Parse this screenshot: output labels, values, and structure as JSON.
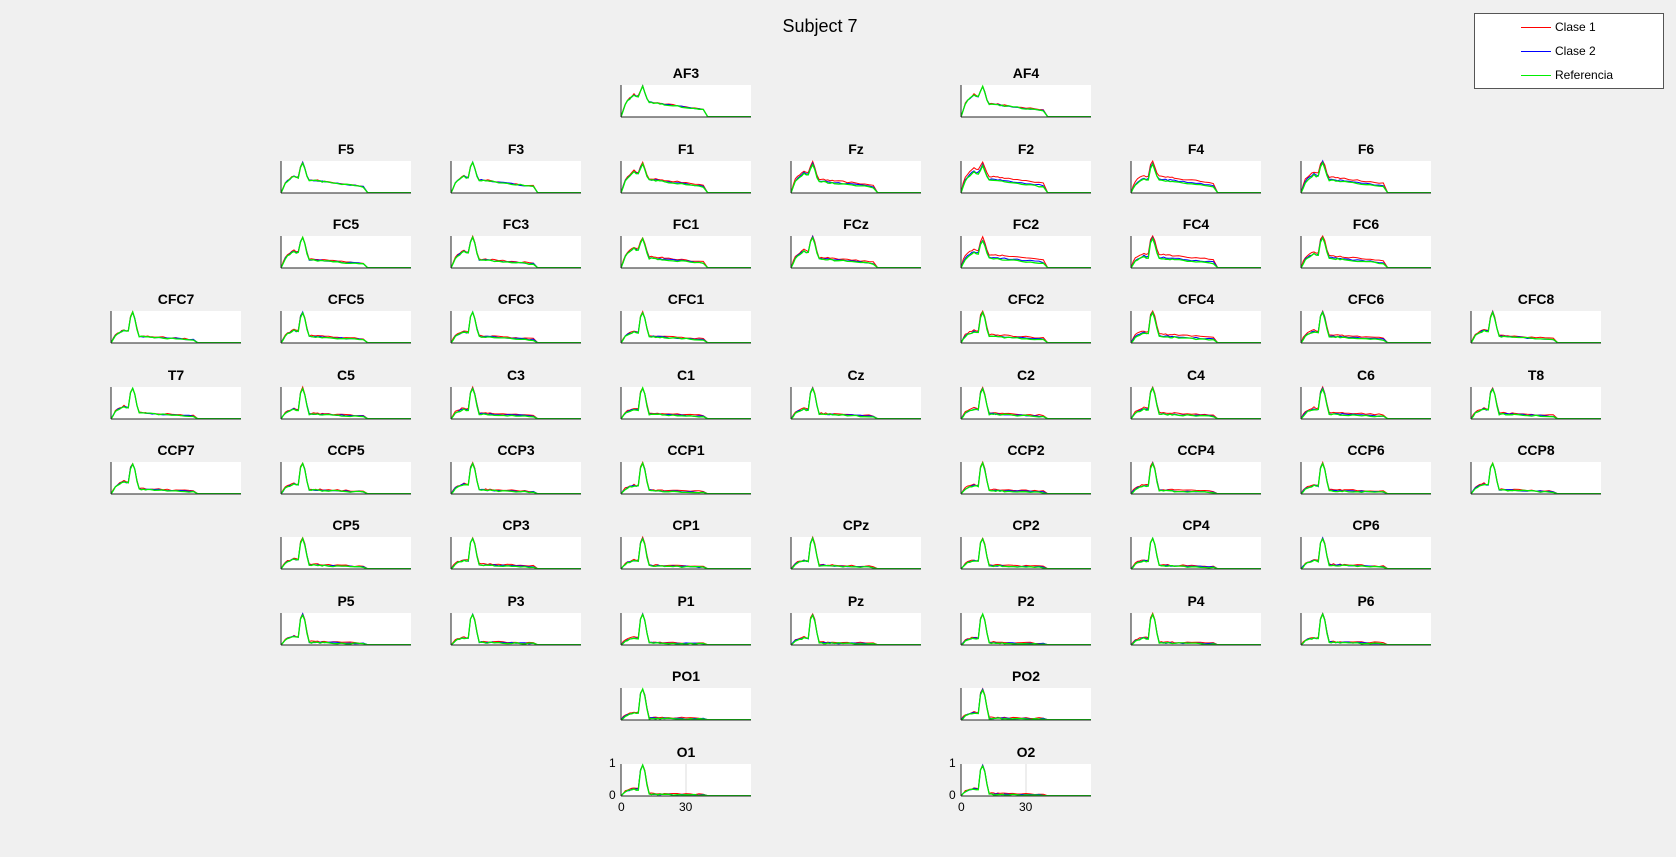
{
  "figure": {
    "title": "Subject 7",
    "colors": {
      "background": "#f0f0f0",
      "axes": "#ffffff"
    }
  },
  "legend": [
    {
      "label": "Clase 1",
      "color": "#ff0000"
    },
    {
      "label": "Clase 2",
      "color": "#0000ff"
    },
    {
      "label": "Referencia",
      "color": "#00ee00"
    }
  ],
  "chart_data": {
    "type": "line",
    "title": "Subject 7",
    "xlabel": "",
    "ylabel": "",
    "xlim": [
      0,
      60
    ],
    "ylim": [
      0,
      1
    ],
    "xticks": [
      0,
      30
    ],
    "yticks": [
      0,
      1
    ],
    "grid": false,
    "legend_position": "top-right",
    "shared_x": [
      0,
      1,
      2,
      3,
      4,
      5,
      6,
      7,
      8,
      9,
      10,
      11,
      12,
      13,
      14,
      15,
      16,
      17,
      18,
      19,
      20,
      22,
      24,
      26,
      28,
      30,
      32,
      34,
      36,
      38,
      40,
      42,
      44,
      46,
      48,
      50,
      52,
      55,
      58,
      60
    ],
    "series_names": [
      "Clase 1",
      "Clase 2",
      "Referencia"
    ],
    "channels": [
      {
        "name": "AF3",
        "row": 0,
        "col": 3,
        "peak": 0.95,
        "alpha": 0.8,
        "tail": 0.45,
        "cut": 40,
        "diff": 0.02,
        "ticks": false
      },
      {
        "name": "AF4",
        "row": 0,
        "col": 5,
        "peak": 0.95,
        "alpha": 0.8,
        "tail": 0.4,
        "cut": 40,
        "diff": 0.02,
        "ticks": false
      },
      {
        "name": "F5",
        "row": 1,
        "col": 1,
        "peak": 0.95,
        "alpha": 0.6,
        "tail": 0.4,
        "cut": 40,
        "diff": 0.02,
        "ticks": false
      },
      {
        "name": "F3",
        "row": 1,
        "col": 2,
        "peak": 0.95,
        "alpha": 0.6,
        "tail": 0.4,
        "cut": 40,
        "diff": 0.02,
        "ticks": false
      },
      {
        "name": "F1",
        "row": 1,
        "col": 3,
        "peak": 0.9,
        "alpha": 0.75,
        "tail": 0.4,
        "cut": 40,
        "diff": 0.05,
        "ticks": false
      },
      {
        "name": "Fz",
        "row": 1,
        "col": 4,
        "peak": 0.9,
        "alpha": 0.7,
        "tail": 0.35,
        "cut": 40,
        "diff": 0.08,
        "ticks": false
      },
      {
        "name": "F2",
        "row": 1,
        "col": 5,
        "peak": 0.85,
        "alpha": 0.75,
        "tail": 0.4,
        "cut": 40,
        "diff": 0.12,
        "ticks": false
      },
      {
        "name": "F4",
        "row": 1,
        "col": 6,
        "peak": 0.9,
        "alpha": 0.5,
        "tail": 0.4,
        "cut": 40,
        "diff": 0.12,
        "ticks": false
      },
      {
        "name": "F6",
        "row": 1,
        "col": 7,
        "peak": 0.95,
        "alpha": 0.65,
        "tail": 0.4,
        "cut": 40,
        "diff": 0.1,
        "ticks": false
      },
      {
        "name": "FC5",
        "row": 2,
        "col": 1,
        "peak": 0.95,
        "alpha": 0.6,
        "tail": 0.25,
        "cut": 40,
        "diff": 0.03,
        "ticks": false
      },
      {
        "name": "FC3",
        "row": 2,
        "col": 2,
        "peak": 0.95,
        "alpha": 0.6,
        "tail": 0.25,
        "cut": 40,
        "diff": 0.03,
        "ticks": false
      },
      {
        "name": "FC1",
        "row": 2,
        "col": 3,
        "peak": 0.9,
        "alpha": 0.7,
        "tail": 0.3,
        "cut": 40,
        "diff": 0.05,
        "ticks": false
      },
      {
        "name": "FCz",
        "row": 2,
        "col": 4,
        "peak": 0.95,
        "alpha": 0.6,
        "tail": 0.28,
        "cut": 40,
        "diff": 0.05,
        "ticks": false
      },
      {
        "name": "FC2",
        "row": 2,
        "col": 5,
        "peak": 0.85,
        "alpha": 0.55,
        "tail": 0.3,
        "cut": 40,
        "diff": 0.12,
        "ticks": false
      },
      {
        "name": "FC4",
        "row": 2,
        "col": 6,
        "peak": 0.9,
        "alpha": 0.4,
        "tail": 0.3,
        "cut": 40,
        "diff": 0.12,
        "ticks": false
      },
      {
        "name": "FC6",
        "row": 2,
        "col": 7,
        "peak": 0.95,
        "alpha": 0.5,
        "tail": 0.3,
        "cut": 40,
        "diff": 0.08,
        "ticks": false
      },
      {
        "name": "CFC7",
        "row": 3,
        "col": 0,
        "peak": 0.95,
        "alpha": 0.45,
        "tail": 0.2,
        "cut": 40,
        "diff": 0.02,
        "ticks": false
      },
      {
        "name": "CFC5",
        "row": 3,
        "col": 1,
        "peak": 0.95,
        "alpha": 0.45,
        "tail": 0.2,
        "cut": 40,
        "diff": 0.03,
        "ticks": false
      },
      {
        "name": "CFC3",
        "row": 3,
        "col": 2,
        "peak": 0.95,
        "alpha": 0.4,
        "tail": 0.2,
        "cut": 40,
        "diff": 0.03,
        "ticks": false
      },
      {
        "name": "CFC1",
        "row": 3,
        "col": 3,
        "peak": 0.95,
        "alpha": 0.4,
        "tail": 0.2,
        "cut": 40,
        "diff": 0.03,
        "ticks": false
      },
      {
        "name": "CFC2",
        "row": 3,
        "col": 5,
        "peak": 0.95,
        "alpha": 0.4,
        "tail": 0.2,
        "cut": 40,
        "diff": 0.06,
        "ticks": false
      },
      {
        "name": "CFC4",
        "row": 3,
        "col": 6,
        "peak": 0.95,
        "alpha": 0.35,
        "tail": 0.2,
        "cut": 40,
        "diff": 0.08,
        "ticks": false
      },
      {
        "name": "CFC6",
        "row": 3,
        "col": 7,
        "peak": 0.95,
        "alpha": 0.4,
        "tail": 0.2,
        "cut": 40,
        "diff": 0.06,
        "ticks": false
      },
      {
        "name": "CFC8",
        "row": 3,
        "col": 8,
        "peak": 0.95,
        "alpha": 0.45,
        "tail": 0.2,
        "cut": 40,
        "diff": 0.04,
        "ticks": false
      },
      {
        "name": "T7",
        "row": 4,
        "col": 0,
        "peak": 0.95,
        "alpha": 0.45,
        "tail": 0.18,
        "cut": 40,
        "diff": 0.02,
        "ticks": false
      },
      {
        "name": "C5",
        "row": 4,
        "col": 1,
        "peak": 0.95,
        "alpha": 0.35,
        "tail": 0.15,
        "cut": 40,
        "diff": 0.03,
        "ticks": false
      },
      {
        "name": "C3",
        "row": 4,
        "col": 2,
        "peak": 0.95,
        "alpha": 0.35,
        "tail": 0.15,
        "cut": 40,
        "diff": 0.05,
        "ticks": false
      },
      {
        "name": "C1",
        "row": 4,
        "col": 3,
        "peak": 0.95,
        "alpha": 0.35,
        "tail": 0.15,
        "cut": 40,
        "diff": 0.04,
        "ticks": false
      },
      {
        "name": "Cz",
        "row": 4,
        "col": 4,
        "peak": 0.95,
        "alpha": 0.35,
        "tail": 0.15,
        "cut": 40,
        "diff": 0.03,
        "ticks": false
      },
      {
        "name": "C2",
        "row": 4,
        "col": 5,
        "peak": 0.95,
        "alpha": 0.35,
        "tail": 0.15,
        "cut": 40,
        "diff": 0.04,
        "ticks": false
      },
      {
        "name": "C4",
        "row": 4,
        "col": 6,
        "peak": 0.95,
        "alpha": 0.35,
        "tail": 0.15,
        "cut": 40,
        "diff": 0.05,
        "ticks": false
      },
      {
        "name": "C6",
        "row": 4,
        "col": 7,
        "peak": 0.95,
        "alpha": 0.35,
        "tail": 0.15,
        "cut": 40,
        "diff": 0.06,
        "ticks": false
      },
      {
        "name": "T8",
        "row": 4,
        "col": 8,
        "peak": 0.95,
        "alpha": 0.35,
        "tail": 0.15,
        "cut": 40,
        "diff": 0.04,
        "ticks": false
      },
      {
        "name": "CCP7",
        "row": 5,
        "col": 0,
        "peak": 0.95,
        "alpha": 0.45,
        "tail": 0.15,
        "cut": 40,
        "diff": 0.02,
        "ticks": false
      },
      {
        "name": "CCP5",
        "row": 5,
        "col": 1,
        "peak": 0.95,
        "alpha": 0.35,
        "tail": 0.12,
        "cut": 40,
        "diff": 0.03,
        "ticks": false
      },
      {
        "name": "CCP3",
        "row": 5,
        "col": 2,
        "peak": 0.95,
        "alpha": 0.35,
        "tail": 0.12,
        "cut": 40,
        "diff": 0.03,
        "ticks": false
      },
      {
        "name": "CCP1",
        "row": 5,
        "col": 3,
        "peak": 0.95,
        "alpha": 0.3,
        "tail": 0.1,
        "cut": 40,
        "diff": 0.03,
        "ticks": false
      },
      {
        "name": "CCP2",
        "row": 5,
        "col": 5,
        "peak": 0.95,
        "alpha": 0.3,
        "tail": 0.1,
        "cut": 40,
        "diff": 0.04,
        "ticks": false
      },
      {
        "name": "CCP4",
        "row": 5,
        "col": 6,
        "peak": 0.95,
        "alpha": 0.3,
        "tail": 0.1,
        "cut": 40,
        "diff": 0.04,
        "ticks": false
      },
      {
        "name": "CCP6",
        "row": 5,
        "col": 7,
        "peak": 0.95,
        "alpha": 0.3,
        "tail": 0.1,
        "cut": 40,
        "diff": 0.04,
        "ticks": false
      },
      {
        "name": "CCP8",
        "row": 5,
        "col": 8,
        "peak": 0.95,
        "alpha": 0.35,
        "tail": 0.12,
        "cut": 40,
        "diff": 0.03,
        "ticks": false
      },
      {
        "name": "CP5",
        "row": 6,
        "col": 1,
        "peak": 0.95,
        "alpha": 0.35,
        "tail": 0.12,
        "cut": 40,
        "diff": 0.03,
        "ticks": false
      },
      {
        "name": "CP3",
        "row": 6,
        "col": 2,
        "peak": 0.95,
        "alpha": 0.3,
        "tail": 0.12,
        "cut": 40,
        "diff": 0.04,
        "ticks": false
      },
      {
        "name": "CP1",
        "row": 6,
        "col": 3,
        "peak": 0.95,
        "alpha": 0.3,
        "tail": 0.1,
        "cut": 40,
        "diff": 0.03,
        "ticks": false
      },
      {
        "name": "CPz",
        "row": 6,
        "col": 4,
        "peak": 0.95,
        "alpha": 0.3,
        "tail": 0.1,
        "cut": 40,
        "diff": 0.03,
        "ticks": false
      },
      {
        "name": "CP2",
        "row": 6,
        "col": 5,
        "peak": 0.95,
        "alpha": 0.3,
        "tail": 0.1,
        "cut": 40,
        "diff": 0.03,
        "ticks": false
      },
      {
        "name": "CP4",
        "row": 6,
        "col": 6,
        "peak": 0.95,
        "alpha": 0.3,
        "tail": 0.1,
        "cut": 40,
        "diff": 0.03,
        "ticks": false
      },
      {
        "name": "CP6",
        "row": 6,
        "col": 7,
        "peak": 0.95,
        "alpha": 0.3,
        "tail": 0.12,
        "cut": 40,
        "diff": 0.03,
        "ticks": false
      },
      {
        "name": "P5",
        "row": 7,
        "col": 1,
        "peak": 0.95,
        "alpha": 0.3,
        "tail": 0.08,
        "cut": 40,
        "diff": 0.03,
        "ticks": false
      },
      {
        "name": "P3",
        "row": 7,
        "col": 2,
        "peak": 0.95,
        "alpha": 0.25,
        "tail": 0.08,
        "cut": 40,
        "diff": 0.03,
        "ticks": false
      },
      {
        "name": "P1",
        "row": 7,
        "col": 3,
        "peak": 0.95,
        "alpha": 0.25,
        "tail": 0.06,
        "cut": 40,
        "diff": 0.03,
        "ticks": false
      },
      {
        "name": "Pz",
        "row": 7,
        "col": 4,
        "peak": 0.95,
        "alpha": 0.25,
        "tail": 0.06,
        "cut": 40,
        "diff": 0.03,
        "ticks": false
      },
      {
        "name": "P2",
        "row": 7,
        "col": 5,
        "peak": 0.95,
        "alpha": 0.25,
        "tail": 0.06,
        "cut": 40,
        "diff": 0.03,
        "ticks": false
      },
      {
        "name": "P4",
        "row": 7,
        "col": 6,
        "peak": 0.95,
        "alpha": 0.25,
        "tail": 0.06,
        "cut": 40,
        "diff": 0.03,
        "ticks": false
      },
      {
        "name": "P6",
        "row": 7,
        "col": 7,
        "peak": 0.95,
        "alpha": 0.25,
        "tail": 0.08,
        "cut": 40,
        "diff": 0.03,
        "ticks": false
      },
      {
        "name": "PO1",
        "row": 8,
        "col": 3,
        "peak": 0.95,
        "alpha": 0.25,
        "tail": 0.05,
        "cut": 40,
        "diff": 0.03,
        "ticks": false
      },
      {
        "name": "PO2",
        "row": 8,
        "col": 5,
        "peak": 0.95,
        "alpha": 0.25,
        "tail": 0.05,
        "cut": 40,
        "diff": 0.03,
        "ticks": false
      },
      {
        "name": "O1",
        "row": 9,
        "col": 3,
        "peak": 0.95,
        "alpha": 0.25,
        "tail": 0.05,
        "cut": 40,
        "diff": 0.03,
        "ticks": true
      },
      {
        "name": "O2",
        "row": 9,
        "col": 5,
        "peak": 0.95,
        "alpha": 0.25,
        "tail": 0.05,
        "cut": 40,
        "diff": 0.03,
        "ticks": true
      }
    ]
  }
}
